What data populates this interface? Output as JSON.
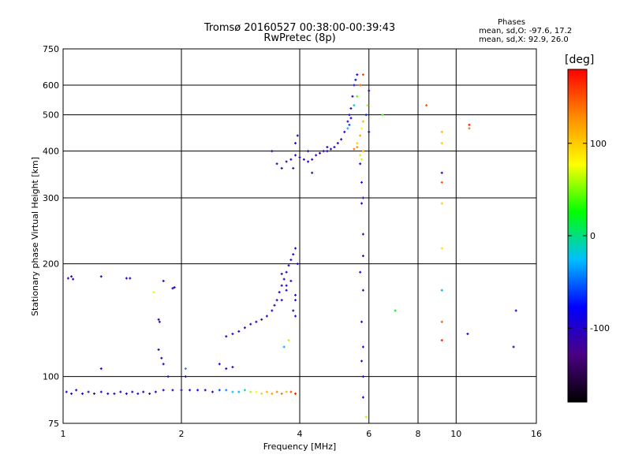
{
  "header": {
    "title_line1": "Tromsø 20160527 00:38:00-00:39:43",
    "title_line2": "RwPretec (8p)"
  },
  "phase_info": {
    "title": "Phases",
    "o_mode": "mean, sd,O: -97.6, 17.2",
    "x_mode": "mean, sd,X:  92.9, 26.0"
  },
  "colorbar": {
    "label": "[deg]",
    "ticks": [
      {
        "value": 100,
        "label": "100"
      },
      {
        "value": 0,
        "label": "0"
      },
      {
        "value": -100,
        "label": "-100"
      }
    ],
    "range": [
      -180,
      180
    ],
    "colors": [
      "#000000",
      "#4b0082",
      "#0000ff",
      "#00bfff",
      "#00ff00",
      "#ffff00",
      "#ff8c00",
      "#ff0000"
    ]
  },
  "chart_data": {
    "type": "scatter",
    "title": "Tromsø 20160527 00:38:00-00:39:43",
    "subtitle": "RwPretec (8p)",
    "xlabel": "Frequency [MHz]",
    "ylabel": "Stationary phase Virtual Height [km]",
    "x_scale": "log",
    "y_scale": "log",
    "xlim": [
      1,
      16
    ],
    "ylim": [
      75,
      750
    ],
    "x_ticks": [
      {
        "value": 1,
        "label": "1"
      },
      {
        "value": 2,
        "label": "2"
      },
      {
        "value": 4,
        "label": "4"
      },
      {
        "value": 6,
        "label": "6"
      },
      {
        "value": 8,
        "label": "8"
      },
      {
        "value": 10,
        "label": "10"
      },
      {
        "value": 16,
        "label": "16"
      }
    ],
    "y_ticks": [
      {
        "value": 75,
        "label": "75"
      },
      {
        "value": 100,
        "label": "100"
      },
      {
        "value": 200,
        "label": "200"
      },
      {
        "value": 300,
        "label": "300"
      },
      {
        "value": 400,
        "label": "400"
      },
      {
        "value": 500,
        "label": "500"
      },
      {
        "value": 600,
        "label": "600"
      },
      {
        "value": 750,
        "label": "750"
      }
    ],
    "grid": true,
    "points": [
      [
        1.02,
        91,
        -105
      ],
      [
        1.05,
        90,
        -110
      ],
      [
        1.08,
        92,
        -108
      ],
      [
        1.12,
        90,
        -100
      ],
      [
        1.16,
        91,
        -112
      ],
      [
        1.2,
        90,
        -105
      ],
      [
        1.25,
        91,
        -110
      ],
      [
        1.3,
        90,
        -100
      ],
      [
        1.35,
        90,
        -108
      ],
      [
        1.4,
        91,
        -112
      ],
      [
        1.45,
        90,
        -104
      ],
      [
        1.5,
        91,
        -100
      ],
      [
        1.55,
        90,
        -110
      ],
      [
        1.6,
        91,
        -106
      ],
      [
        1.66,
        90,
        -112
      ],
      [
        1.72,
        91,
        -95
      ],
      [
        1.8,
        92,
        -100
      ],
      [
        1.9,
        92,
        -105
      ],
      [
        2.0,
        92,
        -110
      ],
      [
        2.1,
        92,
        -100
      ],
      [
        2.2,
        92,
        -90
      ],
      [
        2.3,
        92,
        -100
      ],
      [
        2.4,
        91,
        -106
      ],
      [
        2.5,
        92,
        -60
      ],
      [
        2.6,
        92,
        -40
      ],
      [
        2.7,
        91,
        -20
      ],
      [
        2.8,
        91,
        -30
      ],
      [
        2.9,
        92,
        0
      ],
      [
        3.0,
        91,
        60
      ],
      [
        3.1,
        91,
        80
      ],
      [
        3.2,
        90,
        100
      ],
      [
        3.3,
        91,
        110
      ],
      [
        3.4,
        90,
        120
      ],
      [
        3.5,
        91,
        130
      ],
      [
        3.6,
        90,
        140
      ],
      [
        3.7,
        91,
        110
      ],
      [
        3.8,
        91,
        150
      ],
      [
        3.9,
        90,
        170
      ],
      [
        1.03,
        183,
        -110
      ],
      [
        1.05,
        185,
        -105
      ],
      [
        1.06,
        182,
        -112
      ],
      [
        1.25,
        185,
        -108
      ],
      [
        1.45,
        183,
        -100
      ],
      [
        1.48,
        183,
        -110
      ],
      [
        1.7,
        168,
        70
      ],
      [
        1.8,
        180,
        -105
      ],
      [
        1.9,
        172,
        -110
      ],
      [
        1.92,
        173,
        -100
      ],
      [
        1.75,
        142,
        -100
      ],
      [
        1.76,
        140,
        -110
      ],
      [
        1.25,
        105,
        -100
      ],
      [
        1.75,
        118,
        -105
      ],
      [
        1.78,
        112,
        -110
      ],
      [
        1.8,
        108,
        -100
      ],
      [
        1.85,
        100,
        -112
      ],
      [
        2.05,
        105,
        -40
      ],
      [
        2.5,
        108,
        -100
      ],
      [
        2.6,
        105,
        -110
      ],
      [
        2.7,
        106,
        -105
      ],
      [
        2.05,
        100,
        -100
      ],
      [
        2.6,
        128,
        -110
      ],
      [
        2.7,
        130,
        -105
      ],
      [
        2.8,
        132,
        -100
      ],
      [
        2.9,
        135,
        -112
      ],
      [
        3.0,
        138,
        -108
      ],
      [
        3.1,
        140,
        -100
      ],
      [
        3.2,
        142,
        -110
      ],
      [
        3.3,
        145,
        -105
      ],
      [
        3.4,
        150,
        -100
      ],
      [
        3.45,
        155,
        -110
      ],
      [
        3.5,
        160,
        -106
      ],
      [
        3.55,
        168,
        -100
      ],
      [
        3.6,
        175,
        -110
      ],
      [
        3.65,
        182,
        -105
      ],
      [
        3.7,
        190,
        -100
      ],
      [
        3.75,
        198,
        -112
      ],
      [
        3.8,
        205,
        -108
      ],
      [
        3.85,
        212,
        -110
      ],
      [
        3.9,
        220,
        -100
      ],
      [
        3.95,
        200,
        -105
      ],
      [
        3.6,
        160,
        -110
      ],
      [
        3.7,
        170,
        -100
      ],
      [
        3.8,
        180,
        -106
      ],
      [
        3.9,
        165,
        -100
      ],
      [
        3.85,
        150,
        -110
      ],
      [
        3.9,
        145,
        -105
      ],
      [
        3.6,
        188,
        -110
      ],
      [
        3.7,
        175,
        -100
      ],
      [
        3.75,
        125,
        60
      ],
      [
        3.65,
        120,
        -30
      ],
      [
        3.9,
        160,
        -100
      ],
      [
        3.4,
        400,
        -110
      ],
      [
        3.5,
        370,
        -105
      ],
      [
        3.6,
        360,
        -100
      ],
      [
        3.7,
        375,
        -112
      ],
      [
        3.8,
        380,
        -108
      ],
      [
        3.9,
        390,
        -100
      ],
      [
        4.0,
        385,
        -110
      ],
      [
        4.1,
        380,
        -105
      ],
      [
        4.2,
        375,
        -100
      ],
      [
        4.3,
        350,
        -110
      ],
      [
        3.9,
        420,
        -100
      ],
      [
        3.95,
        440,
        -105
      ],
      [
        3.85,
        360,
        -110
      ],
      [
        4.7,
        400,
        -110
      ],
      [
        4.8,
        405,
        -105
      ],
      [
        4.9,
        410,
        -100
      ],
      [
        5.0,
        420,
        -110
      ],
      [
        5.1,
        430,
        -105
      ],
      [
        5.2,
        450,
        -100
      ],
      [
        5.3,
        480,
        -110
      ],
      [
        5.35,
        500,
        -105
      ],
      [
        5.4,
        520,
        -100
      ],
      [
        5.45,
        560,
        -110
      ],
      [
        5.5,
        600,
        -105
      ],
      [
        5.55,
        620,
        -100
      ],
      [
        5.6,
        640,
        -110
      ],
      [
        5.3,
        460,
        -30
      ],
      [
        5.35,
        470,
        -60
      ],
      [
        5.4,
        490,
        -80
      ],
      [
        5.5,
        530,
        -20
      ],
      [
        5.6,
        560,
        40
      ],
      [
        5.7,
        600,
        150
      ],
      [
        5.8,
        640,
        160
      ],
      [
        5.6,
        420,
        100
      ],
      [
        5.7,
        440,
        120
      ],
      [
        5.75,
        460,
        80
      ],
      [
        5.8,
        480,
        110
      ],
      [
        5.7,
        390,
        90
      ],
      [
        5.75,
        380,
        70
      ],
      [
        5.6,
        410,
        130
      ],
      [
        5.5,
        405,
        140
      ],
      [
        5.8,
        400,
        120
      ],
      [
        5.9,
        500,
        -70
      ],
      [
        5.95,
        530,
        60
      ],
      [
        6.0,
        450,
        -90
      ],
      [
        4.3,
        380,
        -100
      ],
      [
        4.4,
        390,
        -105
      ],
      [
        4.5,
        395,
        -110
      ],
      [
        4.6,
        400,
        -100
      ],
      [
        4.7,
        410,
        -105
      ],
      [
        4.2,
        400,
        -110
      ],
      [
        5.7,
        370,
        -100
      ],
      [
        5.75,
        330,
        -110
      ],
      [
        5.8,
        300,
        -105
      ],
      [
        5.75,
        290,
        -100
      ],
      [
        5.8,
        240,
        -110
      ],
      [
        5.8,
        210,
        -105
      ],
      [
        5.7,
        190,
        -100
      ],
      [
        5.8,
        170,
        -110
      ],
      [
        5.75,
        140,
        -105
      ],
      [
        5.8,
        120,
        -100
      ],
      [
        5.75,
        110,
        -110
      ],
      [
        5.8,
        100,
        -105
      ],
      [
        5.8,
        88,
        -100
      ],
      [
        5.9,
        78,
        60
      ],
      [
        6.0,
        580,
        -100
      ],
      [
        6.5,
        500,
        40
      ],
      [
        7.0,
        150,
        20
      ],
      [
        8.4,
        530,
        150
      ],
      [
        9.2,
        450,
        110
      ],
      [
        9.2,
        420,
        100
      ],
      [
        9.2,
        350,
        -110
      ],
      [
        9.2,
        330,
        150
      ],
      [
        9.2,
        290,
        100
      ],
      [
        9.2,
        220,
        90
      ],
      [
        9.2,
        170,
        -30
      ],
      [
        9.2,
        140,
        150
      ],
      [
        9.2,
        125,
        170
      ],
      [
        10.8,
        470,
        170
      ],
      [
        10.8,
        460,
        140
      ],
      [
        10.7,
        130,
        -100
      ],
      [
        14.0,
        120,
        -110
      ],
      [
        14.2,
        150,
        -105
      ]
    ]
  }
}
